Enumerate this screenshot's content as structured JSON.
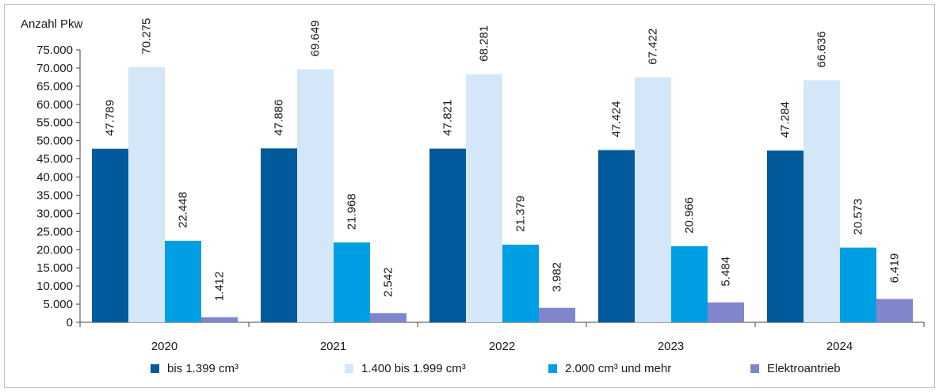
{
  "chart_data": {
    "type": "bar",
    "title": "",
    "xlabel": "",
    "ylabel": "Anzahl Pkw",
    "ylim": [
      0,
      75000
    ],
    "yticks": [
      0,
      5000,
      10000,
      15000,
      20000,
      25000,
      30000,
      35000,
      40000,
      45000,
      50000,
      55000,
      60000,
      65000,
      70000,
      75000
    ],
    "ytick_labels": [
      "0",
      "5.000",
      "10.000",
      "15.000",
      "20.000",
      "25.000",
      "30.000",
      "35.000",
      "40.000",
      "45.000",
      "50.000",
      "55.000",
      "60.000",
      "65.000",
      "70.000",
      "75.000"
    ],
    "grid": false,
    "legend_position": "bottom",
    "categories": [
      "2020",
      "2021",
      "2022",
      "2023",
      "2024"
    ],
    "series": [
      {
        "name": "bis 1.399 cm³",
        "color": "#005a9c",
        "values": [
          47789,
          47886,
          47821,
          47424,
          47284
        ],
        "labels": [
          "47.789",
          "47.886",
          "47.821",
          "47.424",
          "47.284"
        ]
      },
      {
        "name": "1.400 bis 1.999 cm³",
        "color": "#d4e7f8",
        "values": [
          70275,
          69649,
          68281,
          67422,
          66636
        ],
        "labels": [
          "70.275",
          "69.649",
          "68.281",
          "67.422",
          "66.636"
        ]
      },
      {
        "name": "2.000 cm³ und mehr",
        "color": "#009fe3",
        "values": [
          22448,
          21968,
          21379,
          20966,
          20573
        ],
        "labels": [
          "22.448",
          "21.968",
          "21.379",
          "20.966",
          "20.573"
        ]
      },
      {
        "name": "Elektroantrieb",
        "color": "#7f86cc",
        "values": [
          1412,
          2542,
          3982,
          5484,
          6419
        ],
        "labels": [
          "1.412",
          "2.542",
          "3.982",
          "5.484",
          "6.419"
        ]
      }
    ]
  }
}
